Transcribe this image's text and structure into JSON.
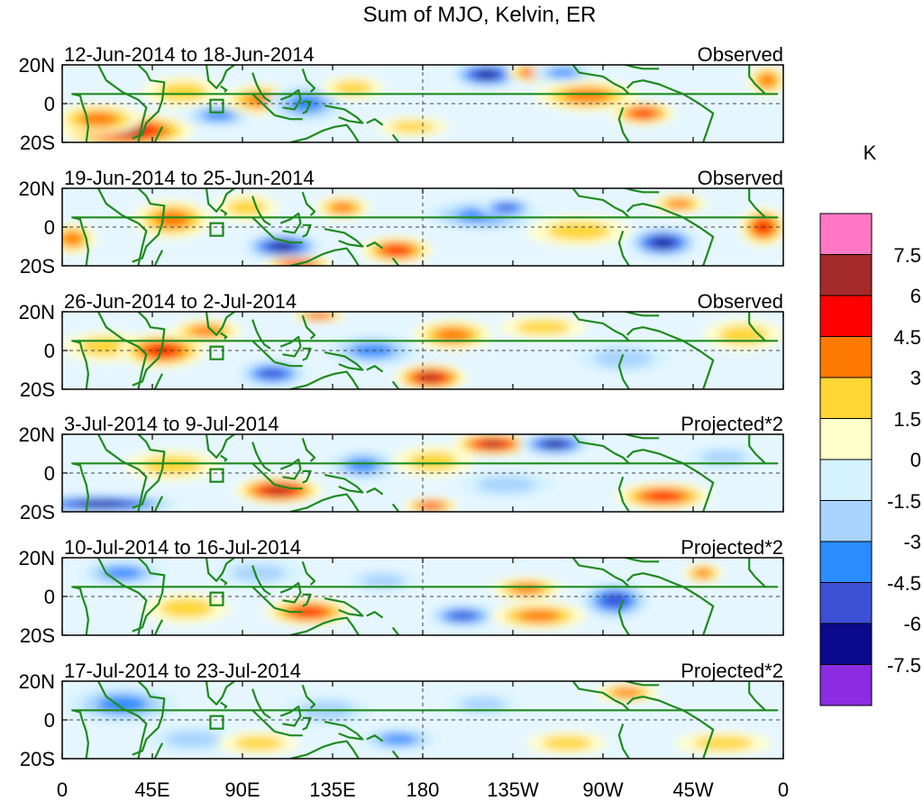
{
  "title": "Sum of MJO, Kelvin, ER",
  "colorbar": {
    "unit": "K",
    "labels": [
      "7.5",
      "6",
      "4.5",
      "3",
      "1.5",
      "0",
      "-1.5",
      "-3",
      "-4.5",
      "-6",
      "-7.5"
    ],
    "colors": [
      "#ff77c5",
      "#a52a2a",
      "#ff0000",
      "#ff7a00",
      "#ffd633",
      "#ffffcc",
      "#d4f2ff",
      "#a8d4ff",
      "#2a8cff",
      "#3c50d6",
      "#0a0a8c",
      "#8b2be2"
    ]
  },
  "latitude_labels": [
    "20N",
    "0",
    "20S"
  ],
  "longitude_labels": [
    "0",
    "45E",
    "90E",
    "135E",
    "180",
    "135W",
    "90W",
    "45W",
    "0"
  ],
  "panels": [
    {
      "dates": "12-Jun-2014 to 18-Jun-2014",
      "kind": "Observed",
      "blobs": [
        {
          "lon": 32,
          "lat": -14,
          "rx": 34,
          "ry": 9,
          "v": 6
        },
        {
          "lon": 18,
          "lat": -8,
          "rx": 22,
          "ry": 8,
          "v": 3
        },
        {
          "lon": 60,
          "lat": 6,
          "rx": 20,
          "ry": 8,
          "v": 1.5
        },
        {
          "lon": 78,
          "lat": -6,
          "rx": 18,
          "ry": 6,
          "v": -3
        },
        {
          "lon": 100,
          "lat": 2,
          "rx": 20,
          "ry": 8,
          "v": 3
        },
        {
          "lon": 122,
          "lat": 0,
          "rx": 20,
          "ry": 10,
          "v": -3
        },
        {
          "lon": 145,
          "lat": 8,
          "rx": 16,
          "ry": 6,
          "v": 1.5
        },
        {
          "lon": 175,
          "lat": -12,
          "rx": 18,
          "ry": 5,
          "v": 1.5
        },
        {
          "lon": 212,
          "lat": 15,
          "rx": 18,
          "ry": 7,
          "v": -6
        },
        {
          "lon": 236,
          "lat": 16,
          "rx": 14,
          "ry": 5,
          "v": 4.5
        },
        {
          "lon": 262,
          "lat": 4,
          "rx": 26,
          "ry": 8,
          "v": 3
        },
        {
          "lon": 290,
          "lat": -5,
          "rx": 16,
          "ry": 6,
          "v": 4.5
        },
        {
          "lon": 250,
          "lat": 16,
          "rx": 16,
          "ry": 5,
          "v": -3
        },
        {
          "lon": 352,
          "lat": 12,
          "rx": 10,
          "ry": 8,
          "v": 3
        }
      ]
    },
    {
      "dates": "19-Jun-2014 to 25-Jun-2014",
      "kind": "Observed",
      "blobs": [
        {
          "lon": 55,
          "lat": 4,
          "rx": 20,
          "ry": 10,
          "v": 3
        },
        {
          "lon": 5,
          "lat": -6,
          "rx": 12,
          "ry": 8,
          "v": 3
        },
        {
          "lon": 92,
          "lat": 10,
          "rx": 16,
          "ry": 7,
          "v": 1.5
        },
        {
          "lon": 110,
          "lat": -10,
          "rx": 20,
          "ry": 7,
          "v": -6
        },
        {
          "lon": 140,
          "lat": 10,
          "rx": 14,
          "ry": 6,
          "v": 3
        },
        {
          "lon": 167,
          "lat": -12,
          "rx": 18,
          "ry": 7,
          "v": 4.5
        },
        {
          "lon": 118,
          "lat": -19,
          "rx": 18,
          "ry": 4,
          "v": 4.5
        },
        {
          "lon": 210,
          "lat": 6,
          "rx": 30,
          "ry": 8,
          "v": -3
        },
        {
          "lon": 222,
          "lat": 10,
          "rx": 14,
          "ry": 5,
          "v": -4.5
        },
        {
          "lon": 258,
          "lat": -2,
          "rx": 26,
          "ry": 8,
          "v": 1.5
        },
        {
          "lon": 300,
          "lat": -8,
          "rx": 18,
          "ry": 8,
          "v": -6
        },
        {
          "lon": 308,
          "lat": 12,
          "rx": 14,
          "ry": 5,
          "v": 3
        },
        {
          "lon": 350,
          "lat": 0,
          "rx": 12,
          "ry": 10,
          "v": 4.5
        }
      ]
    },
    {
      "dates": "26-Jun-2014 to 2-Jul-2014",
      "kind": "Observed",
      "blobs": [
        {
          "lon": 22,
          "lat": 2,
          "rx": 22,
          "ry": 8,
          "v": 1.5
        },
        {
          "lon": 50,
          "lat": 0,
          "rx": 22,
          "ry": 9,
          "v": 4.5
        },
        {
          "lon": 72,
          "lat": 10,
          "rx": 18,
          "ry": 6,
          "v": 3
        },
        {
          "lon": 105,
          "lat": -12,
          "rx": 18,
          "ry": 7,
          "v": -4.5
        },
        {
          "lon": 128,
          "lat": 18,
          "rx": 14,
          "ry": 3,
          "v": 4.5
        },
        {
          "lon": 155,
          "lat": 0,
          "rx": 24,
          "ry": 8,
          "v": -3
        },
        {
          "lon": 195,
          "lat": 8,
          "rx": 20,
          "ry": 8,
          "v": 3
        },
        {
          "lon": 184,
          "lat": -14,
          "rx": 18,
          "ry": 7,
          "v": 6
        },
        {
          "lon": 240,
          "lat": 12,
          "rx": 22,
          "ry": 6,
          "v": 1.5
        },
        {
          "lon": 280,
          "lat": -4,
          "rx": 24,
          "ry": 8,
          "v": -1.5
        },
        {
          "lon": 340,
          "lat": 8,
          "rx": 20,
          "ry": 8,
          "v": 1.5
        }
      ]
    },
    {
      "dates": "3-Jul-2014 to 9-Jul-2014",
      "kind": "Projected*2",
      "blobs": [
        {
          "lon": 20,
          "lat": -16,
          "rx": 40,
          "ry": 5,
          "v": -6
        },
        {
          "lon": 55,
          "lat": 4,
          "rx": 24,
          "ry": 8,
          "v": 1.5
        },
        {
          "lon": 108,
          "lat": -9,
          "rx": 22,
          "ry": 7,
          "v": 6
        },
        {
          "lon": 150,
          "lat": 4,
          "rx": 18,
          "ry": 8,
          "v": -3
        },
        {
          "lon": 185,
          "lat": 6,
          "rx": 20,
          "ry": 8,
          "v": 1.5
        },
        {
          "lon": 215,
          "lat": 15,
          "rx": 20,
          "ry": 6,
          "v": 6
        },
        {
          "lon": 246,
          "lat": 15,
          "rx": 18,
          "ry": 6,
          "v": -6
        },
        {
          "lon": 184,
          "lat": -17,
          "rx": 14,
          "ry": 4,
          "v": 4.5
        },
        {
          "lon": 222,
          "lat": -6,
          "rx": 24,
          "ry": 7,
          "v": -1.5
        },
        {
          "lon": 300,
          "lat": -12,
          "rx": 24,
          "ry": 7,
          "v": 4.5
        },
        {
          "lon": 330,
          "lat": 8,
          "rx": 18,
          "ry": 6,
          "v": -1.5
        }
      ]
    },
    {
      "dates": "10-Jul-2014 to 16-Jul-2014",
      "kind": "Projected*2",
      "blobs": [
        {
          "lon": 30,
          "lat": 12,
          "rx": 22,
          "ry": 7,
          "v": -3
        },
        {
          "lon": 62,
          "lat": -6,
          "rx": 22,
          "ry": 8,
          "v": 1.5
        },
        {
          "lon": 98,
          "lat": 12,
          "rx": 22,
          "ry": 7,
          "v": -1.5
        },
        {
          "lon": 123,
          "lat": -8,
          "rx": 22,
          "ry": 7,
          "v": 4.5
        },
        {
          "lon": 160,
          "lat": 8,
          "rx": 18,
          "ry": 6,
          "v": -1.5
        },
        {
          "lon": 200,
          "lat": -10,
          "rx": 18,
          "ry": 6,
          "v": -4.5
        },
        {
          "lon": 232,
          "lat": 4,
          "rx": 18,
          "ry": 6,
          "v": 3
        },
        {
          "lon": 238,
          "lat": -10,
          "rx": 24,
          "ry": 7,
          "v": 3
        },
        {
          "lon": 276,
          "lat": -2,
          "rx": 18,
          "ry": 10,
          "v": -4.5
        },
        {
          "lon": 320,
          "lat": 12,
          "rx": 10,
          "ry": 5,
          "v": 3
        }
      ]
    },
    {
      "dates": "17-Jul-2014 to 23-Jul-2014",
      "kind": "Projected*2",
      "blobs": [
        {
          "lon": 30,
          "lat": 8,
          "rx": 28,
          "ry": 10,
          "v": -3
        },
        {
          "lon": 65,
          "lat": -10,
          "rx": 22,
          "ry": 7,
          "v": -1.5
        },
        {
          "lon": 98,
          "lat": -12,
          "rx": 20,
          "ry": 6,
          "v": 1.5
        },
        {
          "lon": 132,
          "lat": 5,
          "rx": 22,
          "ry": 8,
          "v": -1.5
        },
        {
          "lon": 168,
          "lat": -10,
          "rx": 20,
          "ry": 6,
          "v": -3
        },
        {
          "lon": 210,
          "lat": 8,
          "rx": 18,
          "ry": 6,
          "v": -1.5
        },
        {
          "lon": 252,
          "lat": -12,
          "rx": 20,
          "ry": 6,
          "v": 1.5
        },
        {
          "lon": 282,
          "lat": 14,
          "rx": 16,
          "ry": 5,
          "v": 3
        },
        {
          "lon": 330,
          "lat": -12,
          "rx": 24,
          "ry": 6,
          "v": 1.5
        }
      ]
    }
  ]
}
